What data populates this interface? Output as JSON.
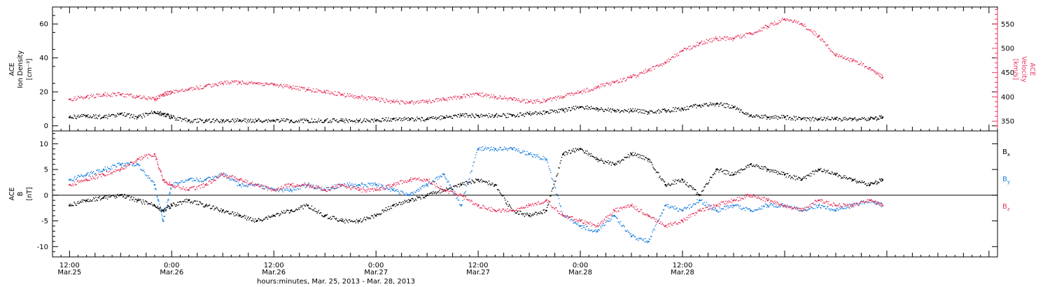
{
  "chart_data": [
    {
      "type": "scatter",
      "panel": "top",
      "ylabel": [
        "ACE",
        "Ion Density",
        "[cm⁻³]"
      ],
      "ylabel_right": [
        "ACE",
        "Velocity",
        "[km/s]"
      ],
      "ylim": [
        -3,
        70
      ],
      "ylim_right": [
        330,
        585
      ],
      "y_ticks": [
        0,
        20,
        40,
        60
      ],
      "y_ticks_right": [
        350,
        400,
        450,
        500,
        550
      ],
      "series": [
        {
          "name": "Ion Density",
          "color": "#000000",
          "axis": "left",
          "x": [
            0,
            2,
            4,
            6,
            8,
            10,
            11,
            12,
            14,
            16,
            18,
            20,
            22,
            24,
            26,
            28,
            30,
            32,
            34,
            36,
            38,
            40,
            42,
            44,
            46,
            48,
            50,
            52,
            54,
            56,
            58,
            60,
            62,
            64,
            66,
            68,
            70,
            72,
            74,
            76,
            78,
            80,
            82,
            84,
            86,
            88,
            90,
            92,
            94,
            95.5
          ],
          "y": [
            5,
            6,
            5,
            7,
            5,
            8,
            7,
            5,
            3,
            3,
            3,
            3,
            3,
            3,
            3,
            3,
            3,
            3,
            3,
            3,
            4,
            4,
            4,
            5,
            6,
            6,
            6,
            6,
            7,
            8,
            9,
            11,
            10,
            9,
            9,
            8,
            9,
            10,
            12,
            13,
            11,
            6,
            5,
            5,
            4,
            4,
            4,
            4,
            4,
            5
          ]
        },
        {
          "name": "Velocity",
          "color": "#e8365c",
          "axis": "right",
          "x": [
            0,
            2,
            4,
            6,
            8,
            10,
            11,
            12,
            14,
            16,
            18,
            20,
            22,
            24,
            26,
            28,
            30,
            32,
            34,
            36,
            38,
            40,
            42,
            44,
            46,
            48,
            50,
            52,
            54,
            56,
            58,
            60,
            62,
            64,
            66,
            68,
            70,
            72,
            74,
            76,
            78,
            80,
            82,
            84,
            86,
            88,
            90,
            92,
            94,
            95.5
          ],
          "y": [
            395,
            400,
            405,
            405,
            400,
            395,
            405,
            410,
            415,
            422,
            428,
            430,
            428,
            425,
            420,
            415,
            410,
            405,
            400,
            395,
            390,
            388,
            390,
            395,
            400,
            405,
            400,
            395,
            390,
            392,
            400,
            410,
            420,
            430,
            440,
            455,
            470,
            495,
            510,
            520,
            520,
            530,
            545,
            560,
            550,
            525,
            485,
            475,
            460,
            440
          ]
        }
      ]
    },
    {
      "type": "scatter",
      "panel": "bottom",
      "ylabel": [
        "ACE",
        "B",
        "[nT]"
      ],
      "ylim": [
        -12,
        12.5
      ],
      "y_ticks": [
        -10,
        -5,
        0,
        5,
        10
      ],
      "series": [
        {
          "name": "Bx",
          "legend": "Bx",
          "color": "#000000",
          "x": [
            0,
            2,
            4,
            6,
            8,
            10,
            11,
            12,
            14,
            16,
            18,
            20,
            22,
            24,
            26,
            28,
            30,
            32,
            34,
            36,
            38,
            40,
            42,
            44,
            46,
            48,
            50,
            52,
            54,
            56,
            58,
            60,
            62,
            64,
            66,
            68,
            70,
            72,
            74,
            76,
            78,
            80,
            82,
            84,
            86,
            88,
            90,
            92,
            94,
            95.5
          ],
          "y": [
            -2,
            -1,
            -0.5,
            0,
            -1,
            -2,
            -3,
            -2,
            -1,
            -2,
            -3,
            -4,
            -5,
            -4,
            -3,
            -2,
            -4,
            -5,
            -5,
            -4,
            -2,
            -1,
            0,
            1,
            2,
            3,
            2,
            -3,
            -4,
            -3,
            8,
            9,
            7,
            6,
            8,
            7,
            2,
            3,
            0,
            5,
            4,
            6,
            5,
            4,
            3,
            5,
            4,
            3,
            2,
            3
          ]
        },
        {
          "name": "By",
          "legend": "By",
          "color": "#1a7fe0",
          "x": [
            0,
            2,
            4,
            6,
            8,
            10,
            11,
            12,
            14,
            16,
            18,
            20,
            22,
            24,
            26,
            28,
            30,
            32,
            34,
            36,
            38,
            40,
            42,
            44,
            46,
            48,
            50,
            52,
            54,
            56,
            58,
            60,
            62,
            64,
            66,
            68,
            70,
            72,
            74,
            76,
            78,
            80,
            82,
            84,
            86,
            88,
            90,
            92,
            94,
            95.5
          ],
          "y": [
            3,
            4,
            5,
            6,
            6,
            2,
            -5,
            2,
            3,
            3,
            4,
            2,
            2,
            1,
            1,
            2,
            1,
            2,
            2,
            2,
            1,
            0,
            2,
            4,
            -2,
            9,
            9,
            9,
            8,
            7,
            -4,
            -6,
            -7,
            -4,
            -8,
            -9,
            -2,
            -3,
            -1,
            -3,
            -2,
            -3,
            -2,
            -2,
            -3,
            -2,
            -3,
            -2,
            -1,
            -2
          ]
        },
        {
          "name": "Bz",
          "legend": "Bz",
          "color": "#e8365c",
          "x": [
            0,
            2,
            4,
            6,
            8,
            10,
            11,
            12,
            14,
            16,
            18,
            20,
            22,
            24,
            26,
            28,
            30,
            32,
            34,
            36,
            38,
            40,
            42,
            44,
            46,
            48,
            50,
            52,
            54,
            56,
            58,
            60,
            62,
            64,
            66,
            68,
            70,
            72,
            74,
            76,
            78,
            80,
            82,
            84,
            86,
            88,
            90,
            92,
            94,
            95.5
          ],
          "y": [
            2,
            3,
            4,
            5,
            7,
            8,
            3,
            2,
            1,
            2,
            4,
            3,
            2,
            1,
            2,
            2,
            1,
            2,
            1,
            1,
            2,
            3,
            3,
            1,
            0,
            -2,
            -3,
            -3,
            -2,
            -1,
            -4,
            -5,
            -6,
            -3,
            -2,
            -4,
            -6,
            -5,
            -3,
            -2,
            -1,
            0,
            -1,
            -2,
            -3,
            -1,
            -2,
            -2,
            -1,
            -2
          ]
        }
      ]
    }
  ],
  "x_axis": {
    "title": "hours:minutes, Mar. 25, 2013 - Mar. 28, 2013",
    "range_hours": [
      -2,
      109
    ],
    "ticks": [
      {
        "x": 0,
        "line1": "12:00",
        "line2": "Mar.25"
      },
      {
        "x": 12,
        "line1": "0:00",
        "line2": "Mar.26"
      },
      {
        "x": 24,
        "line1": "12:00",
        "line2": "Mar.26"
      },
      {
        "x": 36,
        "line1": "0:00",
        "line2": "Mar.27"
      },
      {
        "x": 48,
        "line1": "12:00",
        "line2": "Mar.27"
      },
      {
        "x": 60,
        "line1": "0:00",
        "line2": "Mar.28"
      },
      {
        "x": 72,
        "line1": "12:00",
        "line2": "Mar.28"
      }
    ]
  }
}
